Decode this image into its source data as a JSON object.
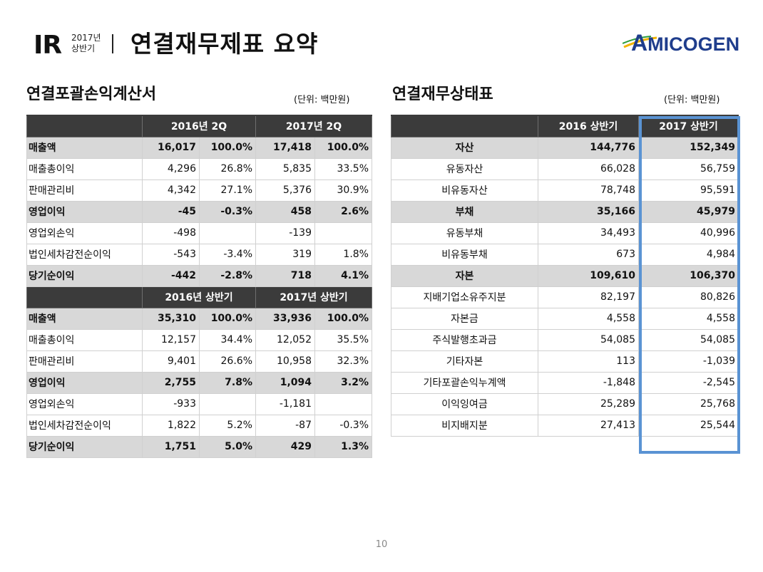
{
  "header": {
    "ir": "IR",
    "period_year": "2017년",
    "period_half": "상반기",
    "title": "연결재무제표 요약",
    "logo": "AMICOGEN",
    "logo_first": "A",
    "logo_rest": "MICOGEN",
    "colors": {
      "logo_text": "#1f3d8c",
      "logo_swoosh": "#f2b400",
      "logo_swoosh2": "#2a9d3a"
    }
  },
  "income": {
    "title": "연결포괄손익계산서",
    "unit": "(단위: 백만원)",
    "q_headers": [
      "2016년 2Q",
      "2017년 2Q"
    ],
    "q_rows": [
      {
        "label": "매출액",
        "v1": "16,017",
        "p1": "100.0%",
        "v2": "17,418",
        "p2": "100.0%",
        "bold": true
      },
      {
        "label": "매출총이익",
        "v1": "4,296",
        "p1": "26.8%",
        "v2": "5,835",
        "p2": "33.5%"
      },
      {
        "label": "판매관리비",
        "v1": "4,342",
        "p1": "27.1%",
        "v2": "5,376",
        "p2": "30.9%"
      },
      {
        "label": "영업이익",
        "v1": "-45",
        "p1": "-0.3%",
        "v2": "458",
        "p2": "2.6%",
        "bold": true
      },
      {
        "label": "영업외손익",
        "v1": "-498",
        "p1": "",
        "v2": "-139",
        "p2": ""
      },
      {
        "label": "법인세차감전순이익",
        "v1": "-543",
        "p1": "-3.4%",
        "v2": "319",
        "p2": "1.8%"
      },
      {
        "label": "당기순이익",
        "v1": "-442",
        "p1": "-2.8%",
        "v2": "718",
        "p2": "4.1%",
        "bold": true
      }
    ],
    "h_headers": [
      "2016년 상반기",
      "2017년 상반기"
    ],
    "h_rows": [
      {
        "label": "매출액",
        "v1": "35,310",
        "p1": "100.0%",
        "v2": "33,936",
        "p2": "100.0%",
        "bold": true
      },
      {
        "label": "매출총이익",
        "v1": "12,157",
        "p1": "34.4%",
        "v2": "12,052",
        "p2": "35.5%"
      },
      {
        "label": "판매관리비",
        "v1": "9,401",
        "p1": "26.6%",
        "v2": "10,958",
        "p2": "32.3%"
      },
      {
        "label": "영업이익",
        "v1": "2,755",
        "p1": "7.8%",
        "v2": "1,094",
        "p2": "3.2%",
        "bold": true
      },
      {
        "label": "영업외손익",
        "v1": "-933",
        "p1": "",
        "v2": "-1,181",
        "p2": ""
      },
      {
        "label": "법인세차감전순이익",
        "v1": "1,822",
        "p1": "5.2%",
        "v2": "-87",
        "p2": "-0.3%"
      },
      {
        "label": "당기순이익",
        "v1": "1,751",
        "p1": "5.0%",
        "v2": "429",
        "p2": "1.3%",
        "bold": true
      }
    ]
  },
  "balance": {
    "title": "연결재무상태표",
    "unit": "(단위: 백만원)",
    "headers": [
      "2016 상반기",
      "2017 상반기"
    ],
    "rows": [
      {
        "label": "자산",
        "v1": "144,776",
        "v2": "152,349",
        "bold": true
      },
      {
        "label": "유동자산",
        "v1": "66,028",
        "v2": "56,759"
      },
      {
        "label": "비유동자산",
        "v1": "78,748",
        "v2": "95,591"
      },
      {
        "label": "부채",
        "v1": "35,166",
        "v2": "45,979",
        "bold": true
      },
      {
        "label": "유동부채",
        "v1": "34,493",
        "v2": "40,996"
      },
      {
        "label": "비유동부채",
        "v1": "673",
        "v2": "4,984"
      },
      {
        "label": "자본",
        "v1": "109,610",
        "v2": "106,370",
        "bold": true
      },
      {
        "label": "지배기업소유주지분",
        "v1": "82,197",
        "v2": "80,826"
      },
      {
        "label": "자본금",
        "v1": "4,558",
        "v2": "4,558"
      },
      {
        "label": "주식발행초과금",
        "v1": "54,085",
        "v2": "54,085"
      },
      {
        "label": "기타자본",
        "v1": "113",
        "v2": "-1,039"
      },
      {
        "label": "기타포괄손익누계액",
        "v1": "-1,848",
        "v2": "-2,545"
      },
      {
        "label": "이익잉여금",
        "v1": "25,289",
        "v2": "25,768"
      },
      {
        "label": "비지배지분",
        "v1": "27,413",
        "v2": "25,544"
      }
    ],
    "highlight_color": "#5a93d3"
  },
  "footer": {
    "page_number": "10"
  }
}
